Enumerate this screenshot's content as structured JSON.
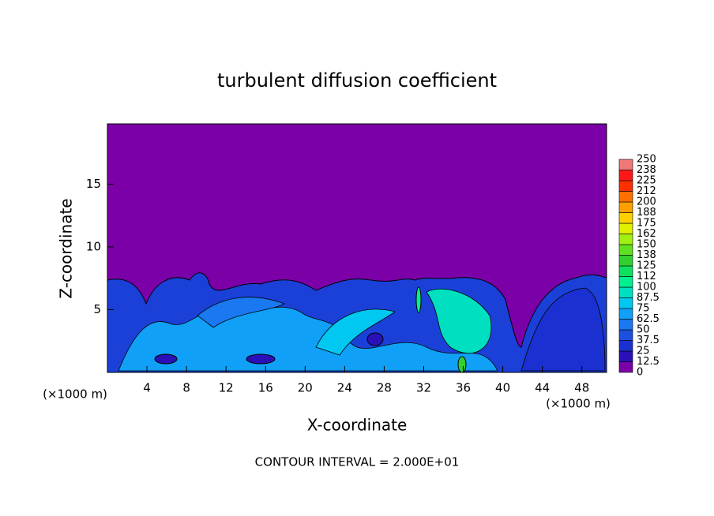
{
  "chart_data": {
    "type": "contour",
    "title": "turbulent diffusion coefficient",
    "x_label": "X-coordinate",
    "y_label": "Z-coordinate",
    "x_unit": "(×1000 m)",
    "footer": "CONTOUR INTERVAL = 2.000E+01",
    "xlim": [
      0,
      50.5
    ],
    "xticks": [
      4,
      8,
      12,
      16,
      20,
      24,
      28,
      32,
      36,
      40,
      44,
      48
    ],
    "ylim": [
      0,
      19.8
    ],
    "yticks": [
      5,
      10,
      15
    ],
    "colorbar": {
      "levels": [
        0,
        12.5,
        25,
        37.5,
        50,
        62.5,
        75,
        87.5,
        100,
        {
          "value": 112.5,
          "label": "112"
        },
        125,
        {
          "value": 137.5,
          "label": "138"
        },
        150,
        {
          "value": 162.5,
          "label": "162"
        },
        175,
        {
          "value": 187.5,
          "label": "188"
        },
        200,
        {
          "value": 212.5,
          "label": "212"
        },
        225,
        {
          "value": 237.5,
          "label": "238"
        },
        250
      ],
      "colors": [
        "#7b00a8",
        "#2a10b8",
        "#1a30d0",
        "#1c50e0",
        "#1a78f0",
        "#10a0f8",
        "#00c8f0",
        "#00e0c0",
        "#00f090",
        "#10e060",
        "#30d030",
        "#60e020",
        "#a0f010",
        "#e0f000",
        "#ffd000",
        "#ffa000",
        "#ff7000",
        "#ff3000",
        "#ff1818",
        "#f07878"
      ]
    }
  }
}
